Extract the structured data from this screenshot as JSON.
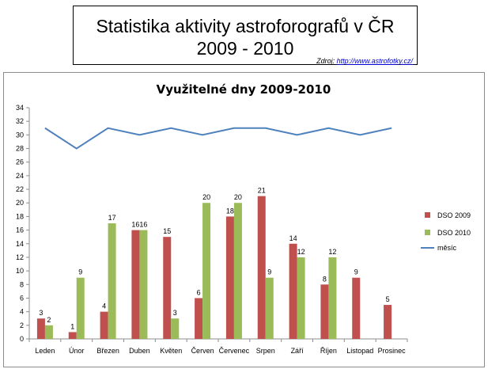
{
  "header": {
    "title_line1": "Statistika aktivity astroforografů v ČR",
    "title_line2": "2009 - 2010",
    "source_label": "Zdroj:",
    "source_url": "http://www.astrofotky.cz/"
  },
  "chart_data": {
    "type": "bar",
    "title": "Využitelné dny 2009-2010",
    "xlabel": "",
    "ylabel": "",
    "ylim": [
      0,
      34
    ],
    "yticks": [
      0,
      2,
      4,
      6,
      8,
      10,
      12,
      14,
      16,
      18,
      20,
      22,
      24,
      26,
      28,
      30,
      32,
      34
    ],
    "grid": false,
    "legend_position": "right",
    "categories": [
      "Leden",
      "Únor",
      "Březen",
      "Duben",
      "Květen",
      "Červen",
      "Červenec",
      "Srpen",
      "Září",
      "Říjen",
      "Listopad",
      "Prosinec"
    ],
    "series": [
      {
        "name": "DSO 2009",
        "type": "bar",
        "color": "#c0504d",
        "values": [
          3,
          1,
          4,
          16,
          15,
          6,
          18,
          21,
          14,
          8,
          9,
          5
        ]
      },
      {
        "name": "DSO 2010",
        "type": "bar",
        "color": "#9bbb59",
        "values": [
          2,
          9,
          17,
          16,
          3,
          20,
          20,
          9,
          12,
          12,
          null,
          null
        ]
      },
      {
        "name": "měsíc",
        "type": "line",
        "color": "#4f81bd",
        "values": [
          31,
          28,
          31,
          30,
          31,
          30,
          31,
          31,
          30,
          31,
          30,
          31
        ]
      }
    ]
  }
}
